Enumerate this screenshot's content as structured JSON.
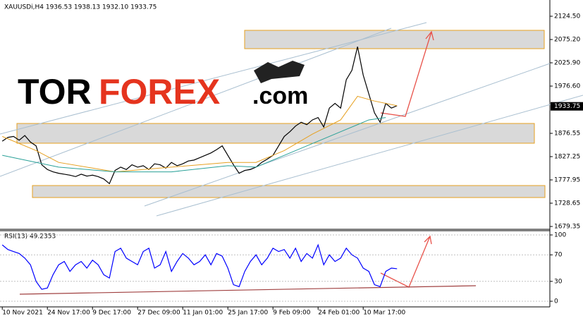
{
  "chart_data": [
    {
      "type": "line",
      "title": "XAUUSDi,H4  1936.53 1938.13 1932.10 1933.75",
      "logo": [
        "TOR",
        "FOREX",
        ".com"
      ],
      "last_price": 1933.75,
      "x": [
        0,
        1,
        2,
        3,
        4,
        5,
        6,
        7,
        8,
        9,
        10,
        11,
        12,
        13,
        14,
        15,
        16,
        17,
        18,
        19,
        20,
        21,
        22,
        23,
        24,
        25,
        26,
        27,
        28,
        29,
        30,
        31,
        32,
        33,
        34,
        35,
        36,
        37,
        38,
        39,
        40,
        41,
        42,
        43,
        44,
        45,
        46,
        47,
        48,
        49,
        50,
        51,
        52,
        53,
        54,
        55,
        56,
        57,
        58,
        59,
        60,
        61,
        62,
        63,
        64,
        65,
        66,
        67,
        68,
        69,
        70
      ],
      "series": [
        {
          "color": "#000000",
          "values": [
            1860,
            1868,
            1870,
            1862,
            1872,
            1858,
            1850,
            1810,
            1800,
            1795,
            1792,
            1790,
            1788,
            1785,
            1790,
            1786,
            1788,
            1785,
            1780,
            1770,
            1798,
            1805,
            1800,
            1810,
            1805,
            1808,
            1800,
            1812,
            1810,
            1803,
            1815,
            1808,
            1812,
            1818,
            1820,
            1825,
            1830,
            1835,
            1842,
            1850,
            1830,
            1810,
            1792,
            1798,
            1800,
            1805,
            1815,
            1822,
            1830,
            1850,
            1870,
            1880,
            1892,
            1900,
            1895,
            1905,
            1910,
            1890,
            1930,
            1940,
            1930,
            1990,
            2010,
            2060,
            2000,
            1960,
            1920,
            1900,
            1940,
            1930,
            1935
          ]
        },
        {
          "color": "#e6a020",
          "x": [
            0,
            6,
            10,
            20,
            30,
            40,
            45,
            50,
            55,
            60,
            63,
            66,
            70
          ],
          "values": [
            1870,
            1840,
            1815,
            1795,
            1805,
            1815,
            1815,
            1840,
            1875,
            1905,
            1955,
            1945,
            1935
          ]
        },
        {
          "color": "#2aa198",
          "x": [
            0,
            10,
            20,
            30,
            40,
            45,
            50,
            55,
            60,
            65,
            68
          ],
          "values": [
            1830,
            1805,
            1795,
            1795,
            1808,
            1805,
            1830,
            1855,
            1880,
            1905,
            1910
          ]
        }
      ],
      "xlim": [
        -0.4,
        97.1
      ],
      "xticks": [
        {
          "value": 0,
          "label": "10 Nov 2021"
        },
        {
          "value": 8,
          "label": "24 Nov 17:00"
        },
        {
          "value": 16,
          "label": "9 Dec 17:00"
        },
        {
          "value": 24,
          "label": "27 Dec 09:00"
        },
        {
          "value": 32,
          "label": "11 Jan 01:00"
        },
        {
          "value": 40,
          "label": "25 Jan 17:00"
        },
        {
          "value": 48,
          "label": "9 Feb 09:00"
        },
        {
          "value": 56,
          "label": "24 Feb 01:00"
        },
        {
          "value": 64,
          "label": "10 Mar 17:00"
        }
      ],
      "ylim": [
        1673.4,
        2154.4
      ],
      "yticks": [
        {
          "value": 2124.5,
          "label": "2124.50"
        },
        {
          "value": 2075.2,
          "label": "2075.20"
        },
        {
          "value": 2025.9,
          "label": "2025.90"
        },
        {
          "value": 1976.6,
          "label": "1976.60"
        },
        {
          "value": 1876.55,
          "label": "1876.55"
        },
        {
          "value": 1827.25,
          "label": "1827.25"
        },
        {
          "value": 1777.95,
          "label": "1777.95"
        },
        {
          "value": 1728.65,
          "label": "1728.65"
        },
        {
          "value": 1679.35,
          "label": "1679.35"
        }
      ]
    },
    {
      "type": "line",
      "title": "RSI(13) 49.2353",
      "series": [
        {
          "color": "#0000ff",
          "values": [
            85,
            78,
            75,
            72,
            65,
            55,
            30,
            18,
            20,
            40,
            55,
            60,
            45,
            55,
            60,
            50,
            62,
            55,
            40,
            35,
            75,
            80,
            65,
            60,
            55,
            75,
            80,
            50,
            55,
            75,
            45,
            60,
            72,
            65,
            55,
            60,
            70,
            55,
            72,
            68,
            50,
            25,
            22,
            45,
            60,
            70,
            55,
            65,
            80,
            75,
            78,
            65,
            80,
            60,
            72,
            65,
            85,
            55,
            70,
            60,
            65,
            80,
            70,
            65,
            50,
            45,
            25,
            22,
            45,
            50,
            49
          ]
        }
      ],
      "ylim": [
        -8.5,
        106.4
      ],
      "yticks": [
        100,
        70,
        30,
        0
      ]
    }
  ]
}
